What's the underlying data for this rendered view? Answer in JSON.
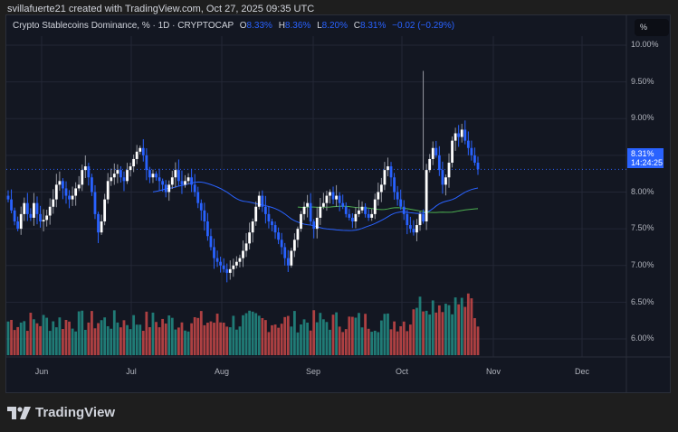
{
  "caption": "svillafuerte21 created with TradingView.com, Oct 27, 2025 09:35 UTC",
  "legend": {
    "symbol": "Crypto Stablecoins Dominance, % · 1D · CRYPTOCAP",
    "o_label": "O",
    "o": "8.33%",
    "h_label": "H",
    "h": "8.36%",
    "l_label": "L",
    "l": "8.20%",
    "c_label": "C",
    "c": "8.31%",
    "change": "−0.02 (−0.29%)"
  },
  "unit_button": "%",
  "price_tag": {
    "price": "8.31%",
    "countdown": "14:24:25"
  },
  "footer": {
    "brand": "TradingView"
  },
  "colors": {
    "background": "#131722",
    "up_candle": "#ffffff",
    "down_candle": "#2962ff",
    "ma_fast": "#2962ff",
    "ma_slow": "#4caf50",
    "volume_up": "#26a69a",
    "volume_down": "#ef5350",
    "price_line": "#2962ff"
  },
  "chart_data": {
    "type": "candlestick",
    "title": "Crypto Stablecoins Dominance, % · 1D · CRYPTOCAP",
    "ylabel": "%",
    "ylim": [
      5.7,
      10.3
    ],
    "y_ticks": [
      "10.00%",
      "9.50%",
      "9.00%",
      "8.50%",
      "8.00%",
      "7.50%",
      "7.00%",
      "6.50%",
      "6.00%"
    ],
    "x_ticks": [
      "Jun",
      "Jul",
      "Aug",
      "Sep",
      "Oct",
      "Nov",
      "Dec"
    ],
    "grid": true,
    "last_price": 8.31,
    "close_series_approx": [
      7.9,
      7.75,
      7.6,
      7.5,
      7.7,
      7.85,
      7.7,
      7.65,
      7.85,
      7.7,
      7.6,
      7.62,
      7.68,
      7.8,
      7.9,
      8.1,
      8.15,
      8.05,
      7.95,
      7.9,
      7.95,
      8.05,
      8.1,
      8.3,
      8.35,
      8.2,
      8.0,
      7.7,
      7.45,
      7.6,
      7.9,
      8.15,
      8.2,
      8.25,
      8.3,
      8.2,
      8.15,
      8.3,
      8.35,
      8.45,
      8.55,
      8.6,
      8.5,
      8.3,
      8.2,
      8.25,
      8.2,
      8.15,
      8.1,
      8.0,
      8.1,
      8.2,
      8.3,
      8.15,
      8.1,
      8.15,
      8.2,
      8.1,
      8.0,
      7.85,
      7.75,
      7.6,
      7.4,
      7.25,
      7.1,
      7.05,
      7.0,
      6.95,
      6.9,
      6.95,
      7.0,
      7.05,
      7.1,
      7.2,
      7.3,
      7.45,
      7.6,
      7.8,
      7.95,
      7.8,
      7.7,
      7.6,
      7.55,
      7.45,
      7.35,
      7.25,
      7.1,
      7.0,
      7.2,
      7.35,
      7.5,
      7.7,
      7.8,
      7.85,
      7.6,
      7.5,
      7.65,
      7.8,
      7.85,
      7.95,
      8.0,
      7.9,
      7.95,
      7.85,
      7.8,
      7.7,
      7.65,
      7.6,
      7.7,
      7.75,
      7.8,
      7.7,
      7.65,
      7.7,
      7.9,
      8.0,
      8.1,
      8.3,
      8.35,
      8.2,
      8.0,
      7.9,
      7.8,
      7.7,
      7.55,
      7.5,
      7.45,
      7.55,
      7.7,
      7.6,
      8.3,
      8.45,
      8.6,
      8.5,
      8.3,
      8.1,
      8.2,
      8.4,
      8.7,
      8.8,
      8.75,
      8.85,
      8.7,
      8.6,
      8.5,
      8.4,
      8.31
    ],
    "ma_fast_approx": {
      "start_index": 45,
      "start": 8.05,
      "end": 8.05,
      "min": 7.35
    },
    "ma_slow_approx": {
      "start_index": 90,
      "start": 7.68,
      "end": 7.75
    },
    "volume_panel": "relative volume bars, red/teal per candle direction"
  }
}
